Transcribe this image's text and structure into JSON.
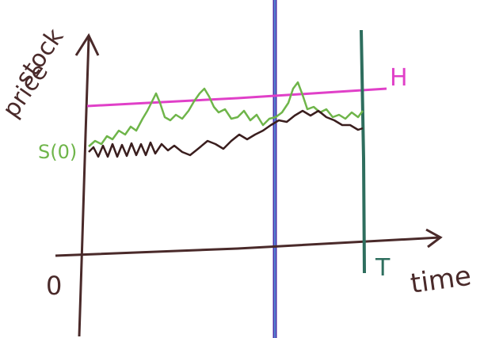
{
  "labels": {
    "y_axis_top": "stock",
    "y_axis_bottom": "price",
    "barrier": "H",
    "start": "S(0)",
    "origin": "0",
    "maturity": "T",
    "x_axis": "time"
  }
}
